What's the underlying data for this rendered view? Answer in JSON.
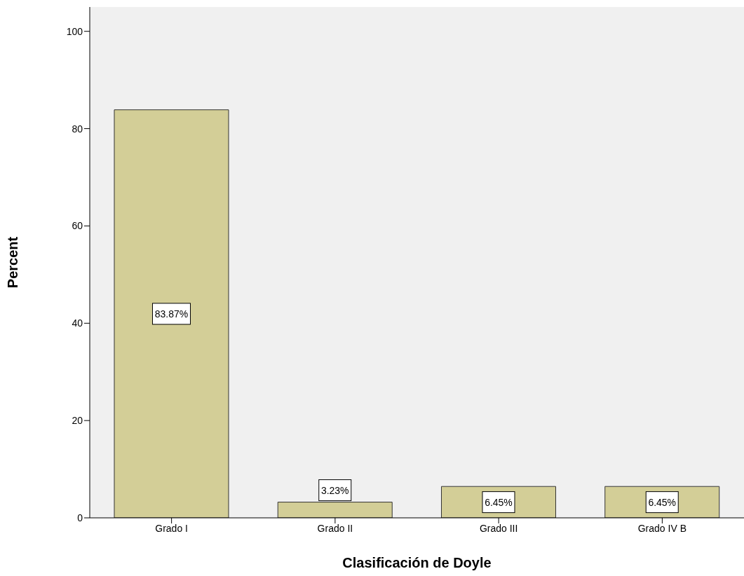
{
  "chart_data": {
    "type": "bar",
    "xlabel": "Clasificación de Doyle",
    "ylabel": "Percent",
    "categories": [
      "Grado I",
      "Grado II",
      "Grado III",
      "Grado IV B"
    ],
    "values": [
      83.87,
      3.23,
      6.45,
      6.45
    ],
    "value_labels": [
      "83.87%",
      "3.23%",
      "6.45%",
      "6.45%"
    ],
    "color": "#d3ce97",
    "ylim": [
      0,
      105
    ],
    "yticks": [
      0,
      20,
      40,
      60,
      80,
      100
    ]
  }
}
